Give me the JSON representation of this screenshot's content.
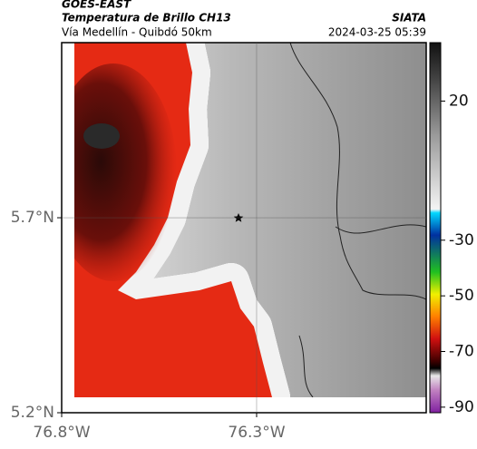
{
  "header": {
    "source": "GOES-EAST",
    "product": "Temperatura de Brillo CH13",
    "route": "Vía Medellín - Quibdó 50km",
    "agency": "SIATA",
    "datetime": "2024-03-25 05:39"
  },
  "map": {
    "xlim": [
      -76.8,
      -75.865
    ],
    "ylim": [
      5.2,
      6.149
    ],
    "xticks": [
      {
        "value": -76.8,
        "label": "76.8°W"
      },
      {
        "value": -76.3,
        "label": "76.3°W"
      }
    ],
    "yticks": [
      {
        "value": 5.7,
        "label": "5.7°N"
      },
      {
        "value": 5.2,
        "label": "5.2°N"
      }
    ],
    "grid": true
  },
  "colorbar": {
    "lim": [
      41,
      -92
    ],
    "ticks": [
      20,
      -30,
      -50,
      -70,
      -90
    ]
  }
}
